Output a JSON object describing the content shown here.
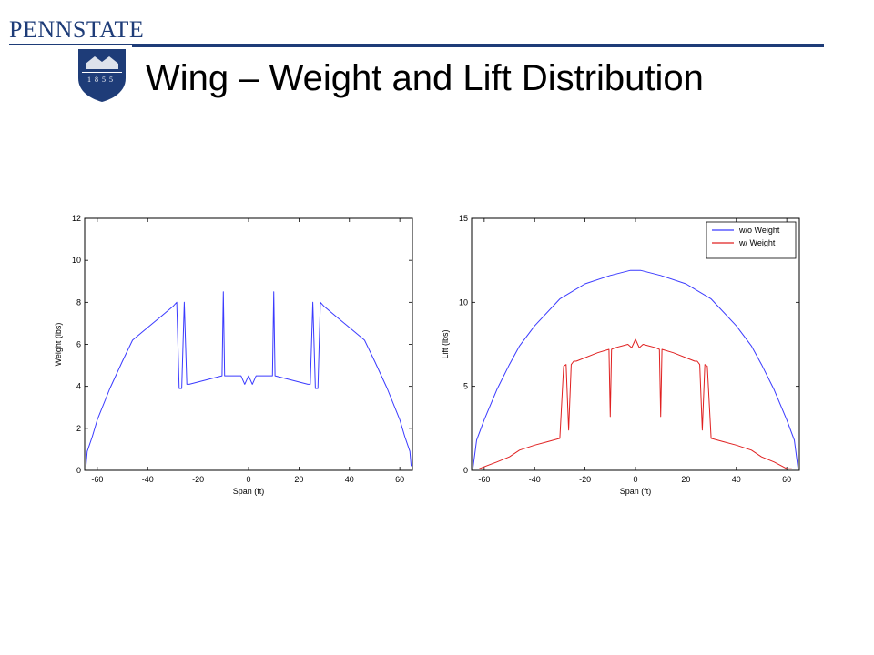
{
  "header": {
    "brand": "PENNSTATE",
    "seal_text": "1855",
    "title": "Wing – Weight and Lift Distribution"
  },
  "colors": {
    "brand": "#1e3c78",
    "series_blue": "#3a3aff",
    "series_red": "#e02020"
  },
  "chart_data": [
    {
      "type": "line",
      "xlabel": "Span (ft)",
      "ylabel": "Weight (lbs)",
      "xlim": [
        -65,
        65
      ],
      "ylim": [
        0,
        12
      ],
      "xticks": [
        -60,
        -40,
        -20,
        0,
        20,
        40,
        60
      ],
      "yticks": [
        0,
        2,
        4,
        6,
        8,
        10,
        12
      ],
      "series": [
        {
          "color": "#3a3aff",
          "x": [
            -64.5,
            -64,
            -62,
            -60,
            -55,
            -50,
            -46,
            -40,
            -35,
            -30,
            -28.5,
            -27.5,
            -26.5,
            -25.5,
            -24.5,
            -23.5,
            -10.5,
            -10,
            -9.5,
            -8,
            -3,
            -1.5,
            0,
            1.5,
            3,
            8,
            9.5,
            10,
            10.5,
            23.5,
            24.5,
            25.5,
            26.5,
            27.5,
            28.5,
            30,
            35,
            40,
            46,
            50,
            55,
            60,
            62,
            64,
            64.5
          ],
          "y": [
            0.2,
            0.9,
            1.6,
            2.4,
            3.9,
            5.2,
            6.2,
            6.8,
            7.3,
            7.8,
            8.0,
            3.9,
            3.9,
            8.0,
            4.1,
            4.1,
            4.5,
            8.5,
            4.5,
            4.5,
            4.5,
            4.1,
            4.5,
            4.1,
            4.5,
            4.5,
            4.5,
            8.5,
            4.5,
            4.1,
            4.1,
            8.0,
            3.9,
            3.9,
            8.0,
            7.8,
            7.3,
            6.8,
            6.2,
            5.2,
            3.9,
            2.4,
            1.6,
            0.9,
            0.2
          ]
        }
      ]
    },
    {
      "type": "line",
      "xlabel": "Span (ft)",
      "ylabel": "Lift (lbs)",
      "xlim": [
        -65,
        65
      ],
      "ylim": [
        0,
        15
      ],
      "xticks": [
        -60,
        -40,
        -20,
        0,
        20,
        40,
        60
      ],
      "yticks": [
        0,
        5,
        10,
        15
      ],
      "legend_position": "top-right",
      "series": [
        {
          "name": "w/o Weight",
          "color": "#3a3aff",
          "x": [
            -64.5,
            -63,
            -60,
            -55,
            -50,
            -46,
            -40,
            -30,
            -20,
            -10,
            -2,
            0,
            2,
            10,
            20,
            30,
            40,
            46,
            50,
            55,
            60,
            63,
            64.5
          ],
          "y": [
            0.1,
            1.8,
            3.0,
            4.8,
            6.3,
            7.4,
            8.6,
            10.2,
            11.1,
            11.6,
            11.9,
            11.9,
            11.9,
            11.6,
            11.1,
            10.2,
            8.6,
            7.4,
            6.3,
            4.8,
            3.0,
            1.8,
            0.1
          ]
        },
        {
          "name": "w/ Weight",
          "color": "#e02020",
          "x": [
            -62,
            -55,
            -50,
            -46,
            -40,
            -35,
            -30,
            -28.5,
            -27.5,
            -26.5,
            -25.5,
            -24.5,
            -23.5,
            -15,
            -10.5,
            -10,
            -9.5,
            -8,
            -3,
            -1.5,
            0,
            1.5,
            3,
            8,
            9.5,
            10,
            10.5,
            15,
            23.5,
            24.5,
            25.5,
            26.5,
            27.5,
            28.5,
            30,
            35,
            40,
            46,
            50,
            55,
            60,
            62
          ],
          "y": [
            0.1,
            0.5,
            0.8,
            1.2,
            1.5,
            1.7,
            1.9,
            6.2,
            6.3,
            2.4,
            6.3,
            6.5,
            6.5,
            7.0,
            7.2,
            3.2,
            7.2,
            7.3,
            7.5,
            7.3,
            7.8,
            7.3,
            7.5,
            7.3,
            7.2,
            3.2,
            7.2,
            7.0,
            6.5,
            6.5,
            6.3,
            2.4,
            6.3,
            6.2,
            1.9,
            1.7,
            1.5,
            1.2,
            0.8,
            0.5,
            0.1,
            0.1
          ]
        }
      ]
    }
  ]
}
